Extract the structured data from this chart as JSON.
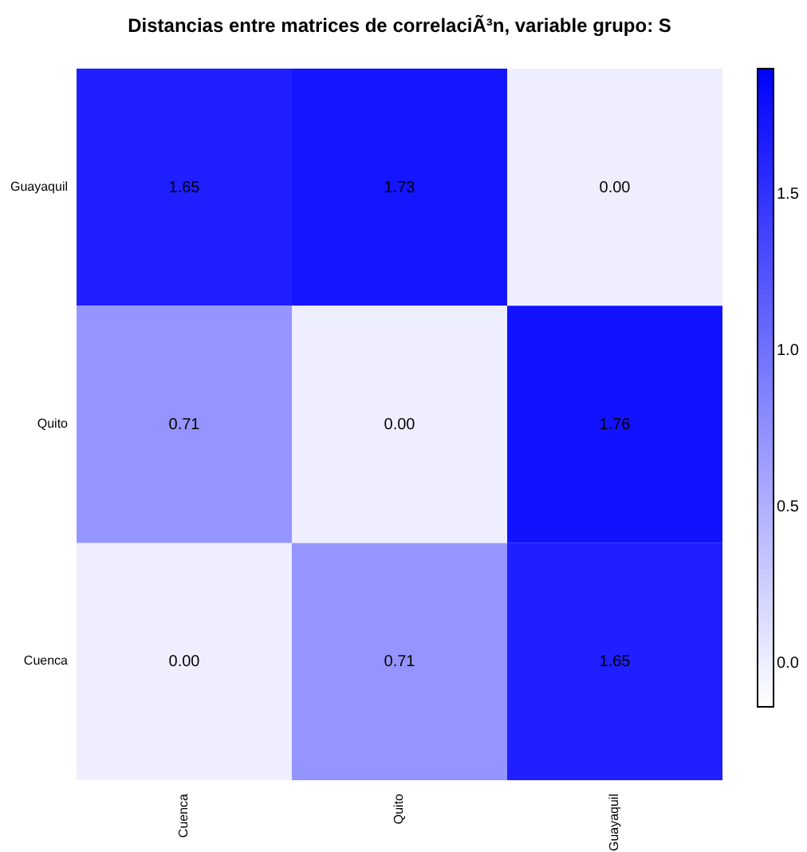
{
  "chart_data": {
    "type": "heatmap",
    "title": "Distancias entre matrices de correlaciÃ³n,  variable grupo: S",
    "categories": [
      "Cuenca",
      "Quito",
      "Guayaquil"
    ],
    "y_categories": [
      "Guayaquil",
      "Quito",
      "Cuenca"
    ],
    "cells": [
      [
        1.65,
        1.73,
        0.0
      ],
      [
        0.71,
        0.0,
        1.76
      ],
      [
        0.0,
        0.71,
        1.65
      ]
    ],
    "cell_labels": [
      [
        "1.65",
        "1.73",
        "0.00"
      ],
      [
        "0.71",
        "0.00",
        "1.76"
      ],
      [
        "0.00",
        "0.71",
        "1.65"
      ]
    ],
    "clim": [
      -0.14,
      1.9
    ],
    "cticks": [
      {
        "value": 0,
        "label": "0.0"
      },
      {
        "value": 0.5,
        "label": "0.5"
      },
      {
        "value": 1,
        "label": "1.0"
      },
      {
        "value": 1.5,
        "label": "1.5"
      }
    ]
  }
}
